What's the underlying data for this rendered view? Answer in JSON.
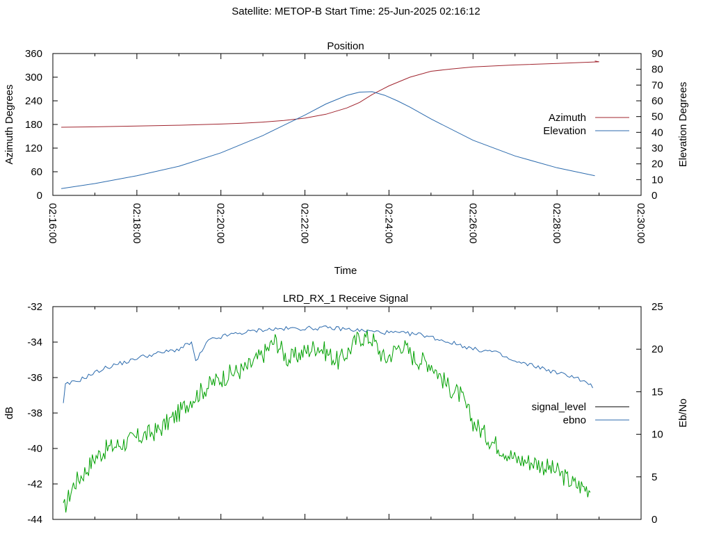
{
  "header": {
    "title": "Satellite: METOP-B    Start Time: 25-Jun-2025 02:16:12"
  },
  "colors": {
    "azimuth": "#a0242e",
    "elevation": "#2b6aad",
    "signal_level": "#00a000",
    "ebno": "#2b6aad",
    "axis": "#000000"
  },
  "chart_data": [
    {
      "type": "line",
      "title": "Position",
      "xlabel": "Time",
      "ylabel": "Azimuth Degrees",
      "y2label": "Elevation Degrees",
      "x_ticks": [
        "02:16:00",
        "02:18:00",
        "02:20:00",
        "02:22:00",
        "02:24:00",
        "02:26:00",
        "02:28:00",
        "02:30:00"
      ],
      "xlim_minutes_after_0216": [
        0,
        14
      ],
      "ylim": [
        0,
        360
      ],
      "y_ticks": [
        "0",
        "60",
        "120",
        "180",
        "240",
        "300",
        "360"
      ],
      "y2lim": [
        0,
        90
      ],
      "y2_ticks": [
        "0",
        "10",
        "20",
        "30",
        "40",
        "50",
        "60",
        "70",
        "80",
        "90"
      ],
      "legend": [
        "Azimuth",
        "Elevation"
      ],
      "legend_position": "right",
      "series": [
        {
          "name": "Azimuth",
          "axis": "left",
          "x": [
            0.2,
            1,
            2,
            3,
            4,
            4.5,
            5,
            5.5,
            6,
            6.5,
            7,
            7.3,
            7.6,
            8,
            8.5,
            9,
            9.5,
            10,
            11,
            12,
            13,
            12.9
          ],
          "values": [
            173,
            174,
            176,
            178,
            181,
            183,
            186,
            190,
            196,
            206,
            222,
            236,
            256,
            278,
            300,
            315,
            321,
            326,
            331,
            335,
            339,
            341
          ]
        },
        {
          "name": "Elevation",
          "axis": "right",
          "x": [
            0.2,
            1,
            2,
            3,
            4,
            5,
            5.5,
            6,
            6.5,
            7,
            7.3,
            7.6,
            7.9,
            8.2,
            8.5,
            9,
            10,
            11,
            12,
            12.9
          ],
          "values": [
            4.3,
            7.5,
            12.5,
            18.5,
            27,
            38,
            44.5,
            51,
            58,
            63.5,
            65.5,
            65.8,
            63.5,
            60,
            56,
            48.5,
            35,
            25,
            17.5,
            12.5
          ]
        }
      ]
    },
    {
      "type": "line",
      "title": "LRD_RX_1 Receive Signal",
      "xlabel": "",
      "ylabel": "dB",
      "y2label": "Eb/No",
      "ylim": [
        -44,
        -32
      ],
      "y_ticks": [
        "-44",
        "-42",
        "-40",
        "-38",
        "-36",
        "-34",
        "-32"
      ],
      "y2lim": [
        0,
        25
      ],
      "y2_ticks": [
        "0",
        "5",
        "10",
        "15",
        "20",
        "25"
      ],
      "legend": [
        "signal_level",
        "ebno"
      ],
      "legend_position": "right",
      "series": [
        {
          "name": "signal_level",
          "axis": "left",
          "x": [
            0.25,
            0.5,
            0.8,
            1,
            1.3,
            1.8,
            2,
            2.5,
            3,
            3.3,
            3.8,
            4.2,
            4.6,
            5,
            5.3,
            5.6,
            6.3,
            6.8,
            7,
            7.3,
            7.6,
            7.9,
            8.3,
            8.6,
            9,
            9.4,
            9.7,
            10,
            10.4,
            10.8,
            11,
            11.5,
            12,
            12.4,
            12.8
          ],
          "values": [
            -43.5,
            -42,
            -41.2,
            -40.5,
            -40,
            -39.6,
            -39.4,
            -39,
            -38,
            -37.2,
            -36.3,
            -35.8,
            -35.5,
            -34.7,
            -33.9,
            -35,
            -34.2,
            -35.1,
            -34.6,
            -33.7,
            -33.8,
            -35,
            -34.1,
            -34.9,
            -35.2,
            -36.5,
            -37,
            -38.5,
            -39.5,
            -40.2,
            -40.6,
            -40.8,
            -41.3,
            -42,
            -42.3
          ]
        },
        {
          "name": "ebno",
          "axis": "right",
          "x": [
            0.25,
            0.3,
            0.6,
            0.9,
            1.2,
            1.5,
            1.9,
            2,
            2.5,
            3,
            3.3,
            3.4,
            3.7,
            4.2,
            5,
            5.5,
            6.5,
            6.9,
            7.3,
            7.8,
            8.2,
            8.8,
            9.3,
            9.7,
            10,
            10.5,
            11,
            11.5,
            12,
            12.4,
            12.9
          ],
          "values": [
            13.5,
            15.8,
            16.3,
            17,
            17.7,
            18.2,
            18.7,
            19,
            19.5,
            20,
            20.8,
            18.5,
            21,
            21.7,
            22.3,
            22.4,
            22.5,
            22.4,
            22.2,
            22,
            21.9,
            21.7,
            21,
            20.5,
            20,
            19.7,
            18.5,
            18,
            17.2,
            16.8,
            15.5
          ]
        }
      ]
    }
  ]
}
